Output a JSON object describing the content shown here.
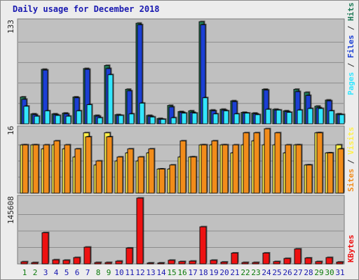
{
  "title": "Daily usage for December 2018",
  "colors": {
    "pages": "#2858e0",
    "hits": "#1f7a57",
    "files": "#1b3fd4",
    "filesLight": "#33e6ff",
    "sites": "#f28c1a",
    "visits": "#fff04a",
    "kbytes": "#ee1111",
    "weekend": "#0a7a0a",
    "weekday": "#1818b0"
  },
  "chart_data": [
    {
      "type": "bar",
      "name": "hits-files-pages",
      "categories": [
        "1",
        "2",
        "3",
        "4",
        "5",
        "6",
        "7",
        "8",
        "9",
        "10",
        "11",
        "12",
        "13",
        "14",
        "15",
        "16",
        "17",
        "18",
        "19",
        "20",
        "21",
        "22",
        "23",
        "24",
        "25",
        "26",
        "27",
        "28",
        "29",
        "30",
        "31"
      ],
      "weekend_days": [
        "1",
        "2",
        "8",
        "9",
        "15",
        "16",
        "22",
        "23",
        "29",
        "30"
      ],
      "ytick": "133",
      "ymax": 133,
      "series": [
        {
          "name": "Hits",
          "values": [
            35,
            13,
            71,
            13,
            14,
            35,
            72,
            11,
            76,
            12,
            45,
            131,
            11,
            7,
            24,
            16,
            17,
            133,
            18,
            19,
            30,
            15,
            14,
            45,
            19,
            17,
            45,
            41,
            23,
            31,
            13
          ]
        },
        {
          "name": "Files",
          "values": [
            32,
            12,
            70,
            12,
            13,
            34,
            71,
            10,
            72,
            11,
            43,
            129,
            10,
            6,
            22,
            15,
            15,
            129,
            17,
            18,
            29,
            14,
            13,
            44,
            18,
            16,
            42,
            37,
            21,
            30,
            12
          ]
        },
        {
          "name": "Pages",
          "values": [
            23,
            10,
            17,
            11,
            10,
            17,
            25,
            8,
            64,
            11,
            13,
            27,
            9,
            6,
            8,
            14,
            14,
            34,
            13,
            17,
            13,
            14,
            12,
            19,
            18,
            15,
            18,
            20,
            20,
            17,
            12
          ]
        }
      ],
      "legend": [
        "Hits",
        "Files",
        "Pages"
      ]
    },
    {
      "type": "bar",
      "name": "visits-sites",
      "categories": [
        "1",
        "2",
        "3",
        "4",
        "5",
        "6",
        "7",
        "8",
        "9",
        "10",
        "11",
        "12",
        "13",
        "14",
        "15",
        "16",
        "17",
        "18",
        "19",
        "20",
        "21",
        "22",
        "23",
        "24",
        "25",
        "26",
        "27",
        "28",
        "29",
        "30",
        "31"
      ],
      "ytick": "16",
      "ymax": 16,
      "series": [
        {
          "name": "Visits",
          "values": [
            12,
            12,
            11,
            12,
            11,
            9,
            15,
            7,
            15,
            8,
            10,
            8,
            10,
            6,
            6,
            9,
            9,
            12,
            12,
            12,
            10,
            12,
            13,
            12,
            12,
            10,
            12,
            7,
            15,
            10,
            12
          ]
        },
        {
          "name": "Sites",
          "values": [
            12,
            12,
            12,
            13,
            12,
            11,
            14,
            8,
            14,
            9,
            11,
            9,
            11,
            6,
            7,
            13,
            9,
            12,
            13,
            12,
            12,
            15,
            15,
            16,
            15,
            12,
            12,
            7,
            15,
            10,
            11
          ]
        }
      ],
      "legend": [
        "Sites",
        "Visits"
      ]
    },
    {
      "type": "bar",
      "name": "kbytes",
      "categories": [
        "1",
        "2",
        "3",
        "4",
        "5",
        "6",
        "7",
        "8",
        "9",
        "10",
        "11",
        "12",
        "13",
        "14",
        "15",
        "16",
        "17",
        "18",
        "19",
        "20",
        "21",
        "22",
        "23",
        "24",
        "25",
        "26",
        "27",
        "28",
        "29",
        "30",
        "31"
      ],
      "ytick": "145608",
      "ymax": 145608,
      "series": [
        {
          "name": "KBytes",
          "values": [
            4500,
            2800,
            69000,
            9000,
            8000,
            14000,
            37000,
            3000,
            3000,
            6000,
            35000,
            145608,
            2000,
            2000,
            8000,
            5000,
            6000,
            82000,
            8000,
            4000,
            24000,
            3000,
            3000,
            24000,
            5000,
            12000,
            33000,
            13000,
            5000,
            14000,
            4000
          ]
        }
      ],
      "legend": [
        "KBytes"
      ]
    }
  ]
}
